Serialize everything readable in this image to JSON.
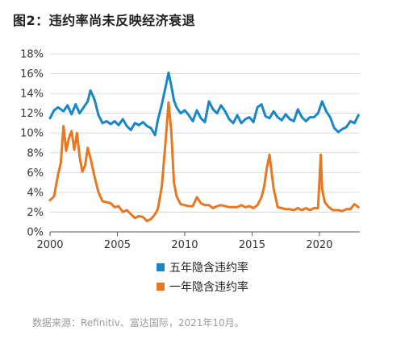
{
  "title": "图2：违约率尚未反映经济衰退",
  "source": "数据来源：Refinitiv、富达国际，2021年10月。",
  "colors": {
    "five_year": "#1a86c4",
    "one_year": "#e87722",
    "grid": "#cfd3d6",
    "axis": "#555555"
  },
  "chart_data": {
    "type": "line",
    "title": "图2：违约率尚未反映经济衰退",
    "xlabel": "",
    "ylabel": "",
    "xlim": [
      2000,
      2023
    ],
    "ylim": [
      0,
      18
    ],
    "x_ticks": [
      2000,
      2005,
      2010,
      2015,
      2020
    ],
    "y_ticks": [
      "0%",
      "2%",
      "4%",
      "6%",
      "8%",
      "10%",
      "12%",
      "14%",
      "16%",
      "18%"
    ],
    "grid": true,
    "legend_position": "bottom",
    "series": [
      {
        "name": "五年隐含违约率",
        "color": "#1a86c4",
        "x": [
          2000.0,
          2000.3,
          2000.6,
          2001.0,
          2001.3,
          2001.6,
          2001.9,
          2002.2,
          2002.5,
          2002.8,
          2003.0,
          2003.3,
          2003.6,
          2003.9,
          2004.2,
          2004.5,
          2004.8,
          2005.1,
          2005.4,
          2005.7,
          2006.0,
          2006.3,
          2006.6,
          2006.9,
          2007.2,
          2007.5,
          2007.8,
          2008.0,
          2008.3,
          2008.6,
          2008.8,
          2009.0,
          2009.2,
          2009.4,
          2009.7,
          2010.0,
          2010.3,
          2010.6,
          2010.9,
          2011.2,
          2011.5,
          2011.8,
          2012.1,
          2012.4,
          2012.7,
          2013.0,
          2013.3,
          2013.6,
          2013.9,
          2014.2,
          2014.5,
          2014.8,
          2015.1,
          2015.4,
          2015.7,
          2016.0,
          2016.3,
          2016.6,
          2016.9,
          2017.2,
          2017.5,
          2017.8,
          2018.1,
          2018.4,
          2018.7,
          2019.0,
          2019.3,
          2019.6,
          2019.9,
          2020.2,
          2020.5,
          2020.8,
          2021.1,
          2021.4,
          2021.7,
          2022.0,
          2022.3,
          2022.6,
          2022.9
        ],
        "values": [
          11.5,
          12.3,
          12.6,
          12.2,
          12.8,
          11.9,
          12.9,
          12.0,
          12.6,
          13.2,
          14.3,
          13.4,
          11.8,
          11.0,
          11.2,
          10.9,
          11.2,
          10.8,
          11.4,
          10.7,
          10.3,
          11.0,
          10.8,
          11.1,
          10.7,
          10.5,
          9.8,
          11.3,
          12.9,
          14.8,
          16.1,
          14.8,
          13.3,
          12.6,
          12.0,
          12.3,
          11.8,
          11.2,
          12.3,
          11.5,
          11.1,
          13.2,
          12.4,
          12.0,
          12.8,
          12.2,
          11.4,
          11.0,
          11.8,
          11.0,
          11.4,
          11.6,
          11.1,
          12.6,
          12.9,
          11.7,
          11.5,
          12.2,
          11.6,
          11.3,
          11.9,
          11.4,
          11.2,
          12.4,
          11.6,
          11.2,
          11.6,
          11.6,
          12.0,
          13.2,
          12.2,
          11.6,
          10.5,
          10.1,
          10.4,
          10.6,
          11.2,
          11.0,
          11.8
        ]
      },
      {
        "name": "一年隐含违约率",
        "color": "#e87722",
        "x": [
          2000.0,
          2000.3,
          2000.6,
          2000.8,
          2001.0,
          2001.2,
          2001.4,
          2001.6,
          2001.8,
          2002.0,
          2002.2,
          2002.4,
          2002.6,
          2002.8,
          2003.0,
          2003.3,
          2003.6,
          2003.9,
          2004.2,
          2004.5,
          2004.8,
          2005.1,
          2005.4,
          2005.7,
          2006.0,
          2006.3,
          2006.6,
          2006.9,
          2007.2,
          2007.5,
          2007.8,
          2008.0,
          2008.3,
          2008.6,
          2008.8,
          2009.0,
          2009.2,
          2009.4,
          2009.7,
          2010.0,
          2010.3,
          2010.6,
          2010.9,
          2011.2,
          2011.5,
          2011.8,
          2012.1,
          2012.4,
          2012.7,
          2013.0,
          2013.3,
          2013.6,
          2013.9,
          2014.2,
          2014.5,
          2014.8,
          2015.1,
          2015.4,
          2015.7,
          2015.9,
          2016.1,
          2016.3,
          2016.6,
          2016.9,
          2017.2,
          2017.5,
          2017.8,
          2018.1,
          2018.4,
          2018.7,
          2019.0,
          2019.3,
          2019.6,
          2019.9,
          2020.1,
          2020.2,
          2020.4,
          2020.7,
          2021.0,
          2021.4,
          2021.7,
          2022.0,
          2022.3,
          2022.6,
          2022.9
        ],
        "values": [
          3.2,
          3.6,
          5.8,
          7.0,
          10.7,
          8.2,
          9.5,
          10.2,
          8.3,
          10.0,
          7.6,
          6.1,
          6.7,
          8.5,
          7.5,
          5.6,
          4.0,
          3.1,
          3.0,
          2.9,
          2.5,
          2.6,
          2.0,
          2.2,
          1.8,
          1.4,
          1.6,
          1.5,
          1.1,
          1.3,
          1.8,
          2.3,
          4.6,
          9.5,
          13.1,
          10.2,
          5.0,
          3.6,
          2.8,
          2.7,
          2.6,
          2.6,
          3.5,
          2.9,
          2.7,
          2.7,
          2.4,
          2.6,
          2.7,
          2.6,
          2.5,
          2.5,
          2.5,
          2.7,
          2.5,
          2.6,
          2.4,
          2.7,
          3.5,
          4.6,
          6.5,
          7.8,
          4.4,
          2.5,
          2.4,
          2.3,
          2.3,
          2.2,
          2.4,
          2.2,
          2.4,
          2.2,
          2.4,
          2.4,
          7.8,
          4.3,
          3.0,
          2.5,
          2.2,
          2.2,
          2.1,
          2.3,
          2.3,
          2.8,
          2.5
        ]
      }
    ]
  }
}
